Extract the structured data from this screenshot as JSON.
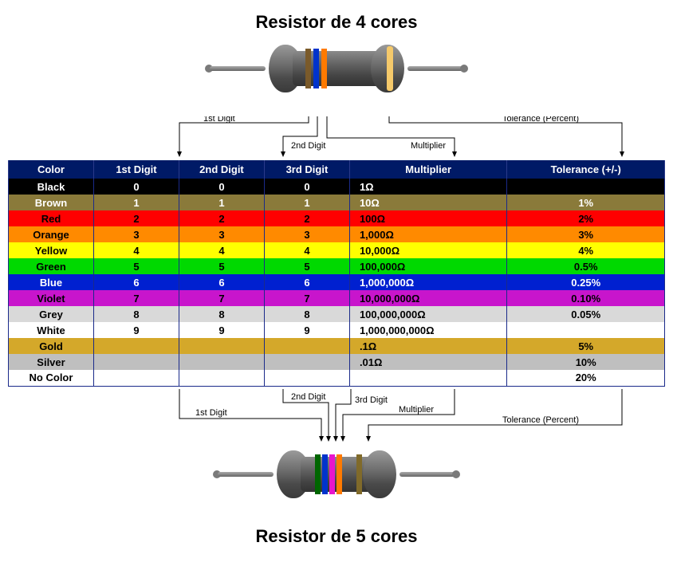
{
  "titles": {
    "top": "Resistor de 4 cores",
    "bottom": "Resistor de 5 cores"
  },
  "annotations": {
    "d1": "1st Digit",
    "d2": "2nd Digit",
    "d3": "3rd Digit",
    "mult": "Multiplier",
    "tol": "Tolerance (Percent)"
  },
  "resistor4": {
    "band_colors": [
      "#7a5a2a",
      "#0033cc",
      "#ff7a00",
      "#f5c96a"
    ],
    "body_color": "#6a6a6a"
  },
  "resistor5": {
    "band_colors": [
      "#006600",
      "#0033cc",
      "#e815cc",
      "#ff7a00",
      "#806a2a"
    ],
    "body_color": "#6a6a6a"
  },
  "table": {
    "headers": [
      "Color",
      "1st Digit",
      "2nd Digit",
      "3rd Digit",
      "Multiplier",
      "Tolerance (+/-)"
    ],
    "rows": [
      {
        "name": "Black",
        "bg": "#000000",
        "fg": "#ffffff",
        "d1": "0",
        "d2": "0",
        "d3": "0",
        "mult": "1Ω",
        "tol": ""
      },
      {
        "name": "Brown",
        "bg": "#8a7a3a",
        "fg": "#ffffff",
        "d1": "1",
        "d2": "1",
        "d3": "1",
        "mult": "10Ω",
        "tol": "1%"
      },
      {
        "name": "Red",
        "bg": "#ff0000",
        "fg": "#000000",
        "d1": "2",
        "d2": "2",
        "d3": "2",
        "mult": "100Ω",
        "tol": "2%"
      },
      {
        "name": "Orange",
        "bg": "#ff8a00",
        "fg": "#000000",
        "d1": "3",
        "d2": "3",
        "d3": "3",
        "mult": "1,000Ω",
        "tol": "3%"
      },
      {
        "name": "Yellow",
        "bg": "#ffff00",
        "fg": "#000000",
        "d1": "4",
        "d2": "4",
        "d3": "4",
        "mult": "10,000Ω",
        "tol": "4%"
      },
      {
        "name": "Green",
        "bg": "#00d900",
        "fg": "#000000",
        "d1": "5",
        "d2": "5",
        "d3": "5",
        "mult": "100,000Ω",
        "tol": "0.5%"
      },
      {
        "name": "Blue",
        "bg": "#0020d0",
        "fg": "#ffffff",
        "d1": "6",
        "d2": "6",
        "d3": "6",
        "mult": "1,000,000Ω",
        "tol": "0.25%"
      },
      {
        "name": "Violet",
        "bg": "#c815cc",
        "fg": "#000000",
        "d1": "7",
        "d2": "7",
        "d3": "7",
        "mult": "10,000,000Ω",
        "tol": "0.10%"
      },
      {
        "name": "Grey",
        "bg": "#d9d9d9",
        "fg": "#000000",
        "d1": "8",
        "d2": "8",
        "d3": "8",
        "mult": "100,000,000Ω",
        "tol": "0.05%"
      },
      {
        "name": "White",
        "bg": "#ffffff",
        "fg": "#000000",
        "d1": "9",
        "d2": "9",
        "d3": "9",
        "mult": "1,000,000,000Ω",
        "tol": ""
      },
      {
        "name": "Gold",
        "bg": "#d4a82a",
        "fg": "#000000",
        "d1": "",
        "d2": "",
        "d3": "",
        "mult": ".1Ω",
        "tol": "5%"
      },
      {
        "name": "Silver",
        "bg": "#bfbfbf",
        "fg": "#000000",
        "d1": "",
        "d2": "",
        "d3": "",
        "mult": ".01Ω",
        "tol": "10%"
      },
      {
        "name": "No Color",
        "bg": "#ffffff",
        "fg": "#000000",
        "d1": "",
        "d2": "",
        "d3": "",
        "mult": "",
        "tol": "20%"
      }
    ],
    "col_widths_pct": [
      13,
      13,
      13,
      13,
      24,
      24
    ]
  }
}
